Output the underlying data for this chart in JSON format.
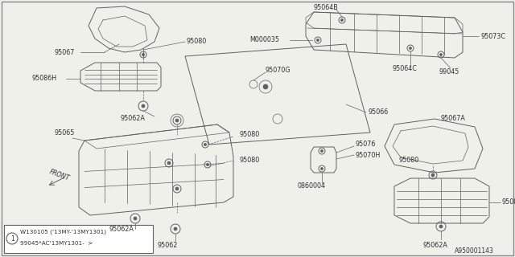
{
  "bg_color": "#f0f0eb",
  "line_color": "#606060",
  "text_color": "#303030",
  "thin_lw": 0.5,
  "med_lw": 0.7,
  "thick_lw": 0.9,
  "label_fs": 5.8,
  "doc_number": "A950001143",
  "bottom_label1": "W130105 ('13MY-'13MY1301)",
  "bottom_label2": "99045*AC'13MY1301-  >"
}
